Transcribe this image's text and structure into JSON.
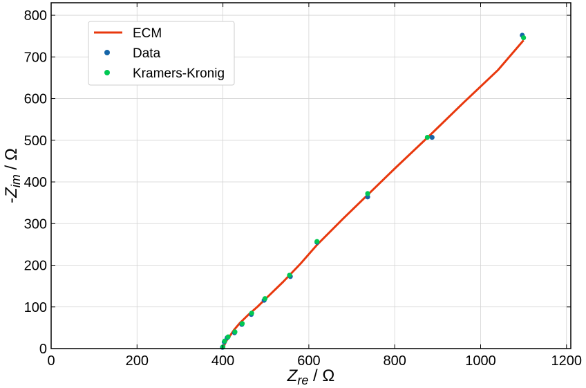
{
  "chart_data": {
    "type": "scatter",
    "xlabel_main": "Z",
    "xlabel_sub": "re",
    "xlabel_unit": " / Ω",
    "ylabel_prefix": "-",
    "ylabel_main": "Z",
    "ylabel_sub": "im",
    "ylabel_unit": " / Ω",
    "xlim": [
      0,
      1210
    ],
    "ylim": [
      0,
      830
    ],
    "xticks": [
      0,
      200,
      400,
      600,
      800,
      1000,
      1200
    ],
    "yticks": [
      0,
      100,
      200,
      300,
      400,
      500,
      600,
      700,
      800
    ],
    "grid": true,
    "legend_position": "top-left",
    "series": [
      {
        "name": "ECM",
        "kind": "line",
        "color": "#e8380d",
        "x": [
          401,
          404,
          409,
          416,
          426,
          440,
          458,
          480,
          505,
          540,
          580,
          620,
          680,
          740,
          800,
          880,
          960,
          1040,
          1100
        ],
        "y": [
          0,
          10,
          20,
          30,
          45,
          62,
          80,
          100,
          125,
          160,
          203,
          250,
          312,
          372,
          432,
          510,
          590,
          668,
          740
        ]
      },
      {
        "name": "Data",
        "kind": "scatter",
        "color": "#1565a8",
        "x": [
          399,
          403,
          410,
          427,
          444,
          466,
          496,
          557,
          619,
          737,
          887,
          1097
        ],
        "y": [
          3,
          16,
          26,
          38,
          58,
          82,
          116,
          173,
          255,
          364,
          507,
          752
        ]
      },
      {
        "name": "Kramers-Kronig",
        "kind": "scatter",
        "color": "#00c853",
        "x": [
          400,
          404,
          412,
          428,
          445,
          467,
          498,
          555,
          619,
          737,
          876,
          1100
        ],
        "y": [
          4,
          18,
          28,
          40,
          60,
          85,
          120,
          176,
          257,
          372,
          507,
          746
        ]
      }
    ]
  }
}
